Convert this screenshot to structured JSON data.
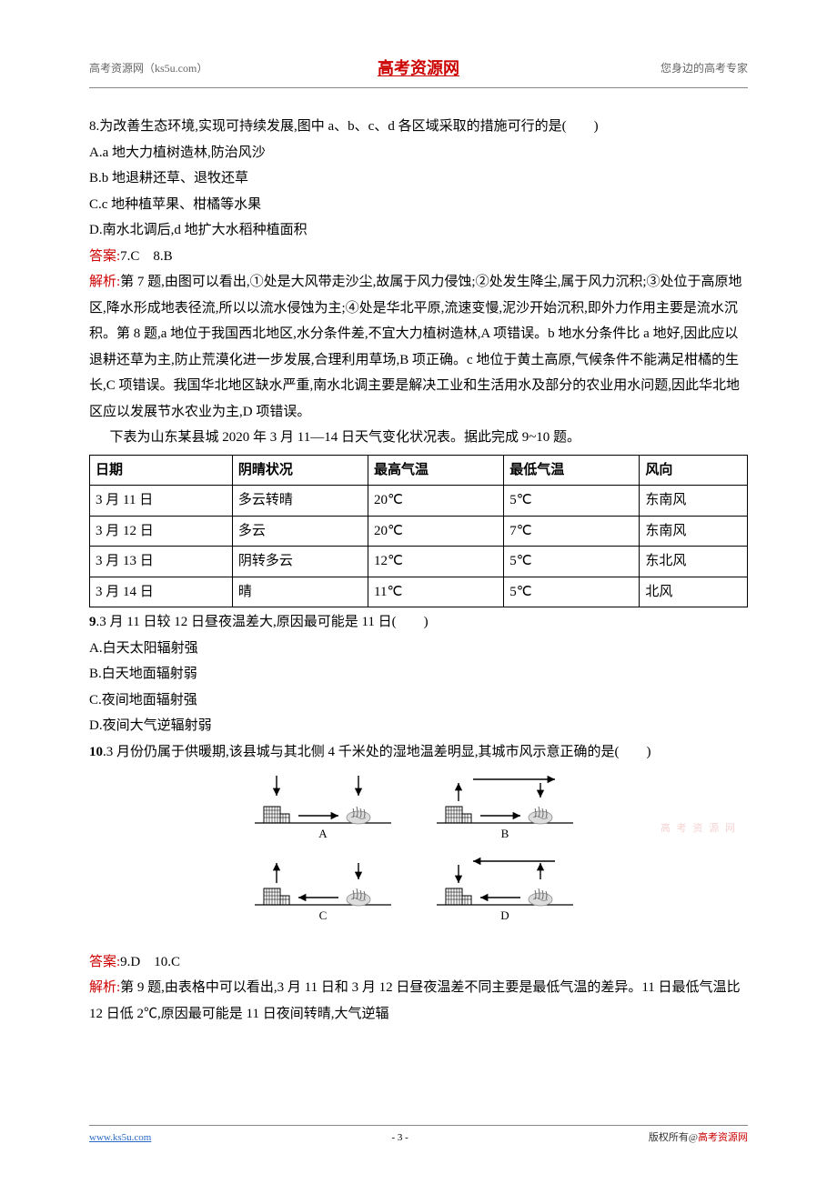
{
  "header": {
    "left": "高考资源网（ks5u.com）",
    "center": "高考资源网",
    "right": "您身边的高考专家"
  },
  "q8": {
    "stem": "8.为改善生态环境,实现可持续发展,图中 a、b、c、d 各区域采取的措施可行的是(　　)",
    "A": "A.a 地大力植树造林,防治风沙",
    "B": "B.b 地退耕还草、退牧还草",
    "C": "C.c 地种植苹果、柑橘等水果",
    "D": "D.南水北调后,d 地扩大水稻种植面积"
  },
  "answers78_label": "答案:",
  "answers78": "7.C　8.B",
  "analysis_label": "解析:",
  "analysis78": "第 7 题,由图可以看出,①处是大风带走沙尘,故属于风力侵蚀;②处发生降尘,属于风力沉积;③处位于高原地区,降水形成地表径流,所以以流水侵蚀为主;④处是华北平原,流速变慢,泥沙开始沉积,即外力作用主要是流水沉积。第 8 题,a 地位于我国西北地区,水分条件差,不宜大力植树造林,A 项错误。b 地水分条件比 a 地好,因此应以退耕还草为主,防止荒漠化进一步发展,合理利用草场,B 项正确。c 地位于黄土高原,气候条件不能满足柑橘的生长,C 项错误。我国华北地区缺水严重,南水北调主要是解决工业和生活用水及部分的农业用水问题,因此华北地区应以发展节水农业为主,D 项错误。",
  "table_intro": "下表为山东某县城 2020 年 3 月 11—14 日天气变化状况表。据此完成 9~10 题。",
  "weather_table": {
    "columns": [
      "日期",
      "阴晴状况",
      "最高气温",
      "最低气温",
      "风向"
    ],
    "rows": [
      [
        "3 月 11 日",
        "多云转晴",
        "20℃",
        "5℃",
        "东南风"
      ],
      [
        "3 月 12 日",
        "多云",
        "20℃",
        "7℃",
        "东南风"
      ],
      [
        "3 月 13 日",
        "阴转多云",
        "12℃",
        "5℃",
        "东北风"
      ],
      [
        "3 月 14 日",
        "晴",
        "11℃",
        "5℃",
        "北风"
      ]
    ],
    "border_color": "#000000",
    "cell_padding": "2px 6px"
  },
  "q9": {
    "stem": "9.3 月 11 日较 12 日昼夜温差大,原因最可能是 11 日(　　)",
    "A": "A.白天太阳辐射强",
    "B": "B.白天地面辐射弱",
    "C": "C.夜间地面辐射强",
    "D": "D.夜间大气逆辐射弱"
  },
  "q10": {
    "stem": "10.3 月份仍属于供暖期,该县城与其北侧 4 千米处的湿地温差明显,其城市风示意正确的是(　　)"
  },
  "diagram": {
    "labels": [
      "A",
      "B",
      "C",
      "D"
    ],
    "building_fill": "#777777",
    "wetland_fill": "#bbbbbb",
    "arrow_color": "#000000",
    "ground_color": "#000000",
    "font_size": 13
  },
  "answers910_label": "答案:",
  "answers910": "9.D　10.C",
  "analysis910": "第 9 题,由表格中可以看出,3 月 11 日和 3 月 12 日昼夜温差不同主要是最低气温的差异。11 日最低气温比 12 日低 2℃,原因最可能是 11 日夜间转晴,大气逆辐",
  "footer": {
    "left": "www.ks5u.com",
    "center": "- 3 -",
    "right_pre": "版权所有@",
    "right_red": "高考资源网"
  },
  "watermark": "高 考 资 源 网"
}
